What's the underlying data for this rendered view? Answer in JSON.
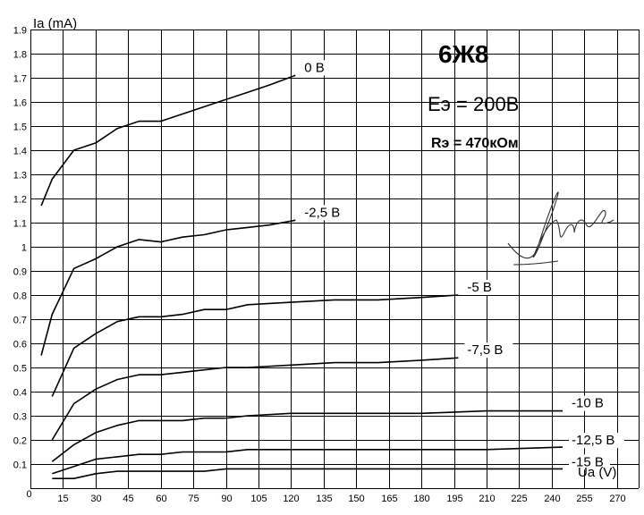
{
  "chart_data": {
    "type": "line",
    "title": "6Ж8",
    "annotations": [
      "Eэ = 200В",
      "Rэ = 470кОм"
    ],
    "xlabel": "Ua (V)",
    "ylabel": "Ia (mA)",
    "xlim": [
      0,
      280
    ],
    "ylim": [
      0,
      1.9
    ],
    "x_ticks": [
      0,
      15,
      30,
      45,
      60,
      75,
      90,
      105,
      120,
      135,
      150,
      165,
      180,
      195,
      210,
      225,
      240,
      255,
      270
    ],
    "y_ticks": [
      0,
      0.1,
      0.2,
      0.3,
      0.4,
      0.5,
      0.6,
      0.7,
      0.8,
      0.9,
      1,
      1.1,
      1.2,
      1.3,
      1.4,
      1.5,
      1.6,
      1.7,
      1.8,
      1.9
    ],
    "grid": true,
    "series": [
      {
        "name": "0 В",
        "x": [
          5,
          10,
          20,
          30,
          40,
          50,
          60,
          70,
          80,
          90,
          100,
          110,
          122
        ],
        "y": [
          1.17,
          1.28,
          1.4,
          1.43,
          1.49,
          1.52,
          1.52,
          1.55,
          1.58,
          1.61,
          1.64,
          1.67,
          1.71
        ]
      },
      {
        "name": "-2,5 В",
        "x": [
          5,
          10,
          20,
          30,
          40,
          50,
          60,
          70,
          80,
          90,
          100,
          110,
          122
        ],
        "y": [
          0.55,
          0.72,
          0.91,
          0.95,
          1.0,
          1.03,
          1.02,
          1.04,
          1.05,
          1.07,
          1.08,
          1.09,
          1.11
        ]
      },
      {
        "name": "-5 В",
        "x": [
          10,
          20,
          30,
          40,
          50,
          60,
          70,
          80,
          90,
          100,
          120,
          140,
          160,
          180,
          197
        ],
        "y": [
          0.38,
          0.58,
          0.64,
          0.69,
          0.71,
          0.71,
          0.72,
          0.74,
          0.74,
          0.76,
          0.77,
          0.78,
          0.78,
          0.79,
          0.8
        ]
      },
      {
        "name": "-7,5 В",
        "x": [
          10,
          20,
          30,
          40,
          50,
          60,
          70,
          80,
          90,
          100,
          120,
          140,
          160,
          180,
          197
        ],
        "y": [
          0.2,
          0.35,
          0.41,
          0.45,
          0.47,
          0.47,
          0.48,
          0.49,
          0.5,
          0.5,
          0.51,
          0.52,
          0.52,
          0.53,
          0.54
        ]
      },
      {
        "name": "-10 В",
        "x": [
          10,
          20,
          30,
          40,
          50,
          60,
          70,
          80,
          90,
          100,
          120,
          150,
          180,
          210,
          245
        ],
        "y": [
          0.11,
          0.18,
          0.23,
          0.26,
          0.28,
          0.28,
          0.28,
          0.29,
          0.29,
          0.3,
          0.31,
          0.31,
          0.31,
          0.32,
          0.32
        ]
      },
      {
        "name": "-12,5 В",
        "x": [
          10,
          20,
          30,
          40,
          50,
          60,
          70,
          80,
          90,
          100,
          120,
          150,
          180,
          210,
          245
        ],
        "y": [
          0.06,
          0.09,
          0.12,
          0.13,
          0.14,
          0.14,
          0.15,
          0.15,
          0.15,
          0.16,
          0.16,
          0.16,
          0.16,
          0.16,
          0.17
        ]
      },
      {
        "name": "-15 В",
        "x": [
          10,
          20,
          30,
          40,
          50,
          60,
          70,
          80,
          90,
          100,
          120,
          150,
          180,
          210,
          245
        ],
        "y": [
          0.04,
          0.04,
          0.06,
          0.07,
          0.07,
          0.07,
          0.07,
          0.07,
          0.08,
          0.08,
          0.08,
          0.08,
          0.08,
          0.08,
          0.08
        ]
      }
    ]
  }
}
